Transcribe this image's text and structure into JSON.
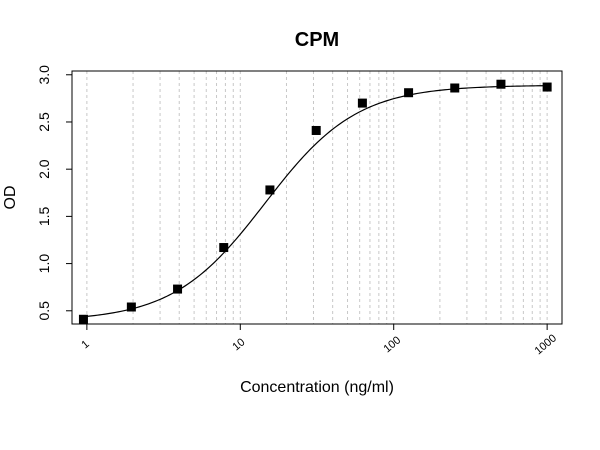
{
  "chart_data": {
    "type": "scatter",
    "title": "CPM",
    "xlabel": "Concentration (ng/ml)",
    "ylabel": "OD",
    "x_scale": "log",
    "xlim": [
      1,
      1000
    ],
    "ylim": [
      0.4,
      3.0
    ],
    "x_ticks": [
      {
        "value": 1,
        "label": "1"
      },
      {
        "value": 10,
        "label": "10"
      },
      {
        "value": 100,
        "label": "100"
      },
      {
        "value": 1000,
        "label": "1000"
      }
    ],
    "y_ticks": [
      {
        "value": 0.5,
        "label": "0.5"
      },
      {
        "value": 1.0,
        "label": "1.0"
      },
      {
        "value": 1.5,
        "label": "1.5"
      },
      {
        "value": 2.0,
        "label": "2.0"
      },
      {
        "value": 2.5,
        "label": "2.5"
      },
      {
        "value": 3.0,
        "label": "3.0"
      }
    ],
    "grid": "vertical-minor-dashed",
    "series": [
      {
        "marker": "filled-square",
        "color": "#000000",
        "points": [
          {
            "x": 0.95,
            "y": 0.41
          },
          {
            "x": 1.95,
            "y": 0.54
          },
          {
            "x": 3.9,
            "y": 0.73
          },
          {
            "x": 7.8,
            "y": 1.17
          },
          {
            "x": 15.6,
            "y": 1.78
          },
          {
            "x": 31.25,
            "y": 2.41
          },
          {
            "x": 62.5,
            "y": 2.7
          },
          {
            "x": 125,
            "y": 2.81
          },
          {
            "x": 250,
            "y": 2.86
          },
          {
            "x": 500,
            "y": 2.9
          },
          {
            "x": 1000,
            "y": 2.87
          }
        ]
      }
    ],
    "fit_curve": {
      "type": "4PL",
      "bottom": 0.39,
      "top": 2.89,
      "ec50": 14.5,
      "hill": 1.45,
      "color": "#000000"
    }
  }
}
